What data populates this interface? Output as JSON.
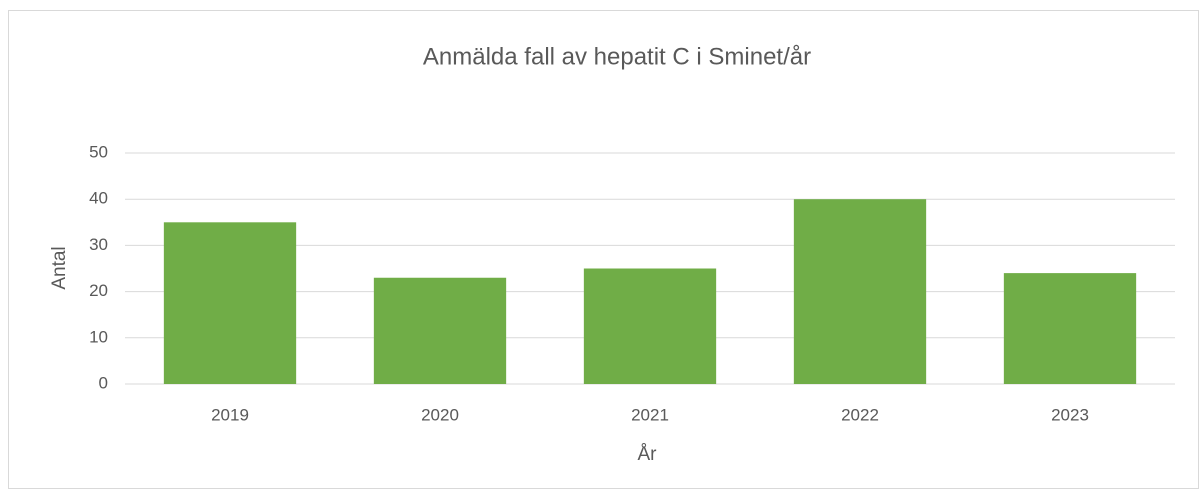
{
  "chart_data": {
    "type": "bar",
    "title": "Anmälda fall av hepatit C i Sminet/år",
    "x_label": "År",
    "y_label": "Antal",
    "categories": [
      "2019",
      "2020",
      "2021",
      "2022",
      "2023"
    ],
    "values": [
      35,
      23,
      25,
      40,
      24
    ],
    "color": "#70ad47",
    "ylim": [
      0,
      50
    ],
    "yticks": [
      0,
      10,
      20,
      30,
      40,
      50
    ],
    "grid": true
  }
}
